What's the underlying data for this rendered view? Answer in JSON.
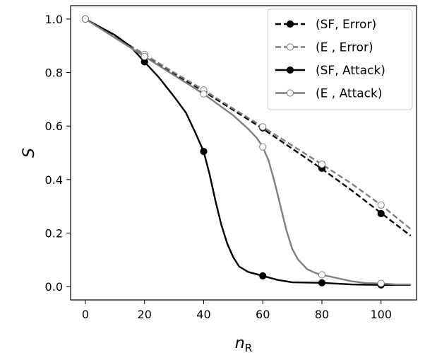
{
  "chart_data": {
    "type": "line",
    "title": "",
    "xlabel_main": "n",
    "xlabel_sub": "R",
    "ylabel": "S",
    "xlim": [
      -5,
      112
    ],
    "ylim": [
      -0.05,
      1.05
    ],
    "xticks": [
      0,
      20,
      40,
      60,
      80,
      100
    ],
    "yticks": [
      0.0,
      0.2,
      0.4,
      0.6,
      0.8,
      1.0
    ],
    "ytick_labels": [
      "0.0",
      "0.2",
      "0.4",
      "0.6",
      "0.8",
      "1.0"
    ],
    "grid": false,
    "legend_position": "top-right",
    "series": [
      {
        "name": "(SF, Error)",
        "color": "#000000",
        "dash": true,
        "marker_fill": "#000000",
        "curve": [
          [
            0,
            1.0
          ],
          [
            10,
            0.935
          ],
          [
            20,
            0.865
          ],
          [
            30,
            0.795
          ],
          [
            40,
            0.73
          ],
          [
            50,
            0.66
          ],
          [
            60,
            0.59
          ],
          [
            70,
            0.515
          ],
          [
            80,
            0.44
          ],
          [
            90,
            0.36
          ],
          [
            100,
            0.275
          ],
          [
            110,
            0.19
          ]
        ],
        "markers": [
          [
            0,
            1.0
          ],
          [
            20,
            0.862
          ],
          [
            40,
            0.728
          ],
          [
            60,
            0.593
          ],
          [
            80,
            0.442
          ],
          [
            100,
            0.273
          ]
        ]
      },
      {
        "name": "(E , Error)",
        "color": "#7f7f7f",
        "dash": true,
        "marker_fill": "#ffffff",
        "curve": [
          [
            0,
            1.0
          ],
          [
            10,
            0.935
          ],
          [
            20,
            0.868
          ],
          [
            30,
            0.8
          ],
          [
            40,
            0.735
          ],
          [
            50,
            0.665
          ],
          [
            60,
            0.597
          ],
          [
            70,
            0.527
          ],
          [
            80,
            0.457
          ],
          [
            90,
            0.385
          ],
          [
            100,
            0.305
          ],
          [
            110,
            0.215
          ]
        ],
        "markers": [
          [
            0,
            1.0
          ],
          [
            20,
            0.868
          ],
          [
            40,
            0.735
          ],
          [
            60,
            0.597
          ],
          [
            80,
            0.457
          ],
          [
            100,
            0.305
          ]
        ]
      },
      {
        "name": "(SF, Attack)",
        "color": "#000000",
        "dash": false,
        "marker_fill": "#000000",
        "curve": [
          [
            0,
            1.0
          ],
          [
            5,
            0.97
          ],
          [
            10,
            0.94
          ],
          [
            15,
            0.9
          ],
          [
            20,
            0.84
          ],
          [
            25,
            0.78
          ],
          [
            30,
            0.71
          ],
          [
            34,
            0.65
          ],
          [
            37,
            0.58
          ],
          [
            40,
            0.505
          ],
          [
            42,
            0.42
          ],
          [
            44,
            0.32
          ],
          [
            46,
            0.23
          ],
          [
            48,
            0.16
          ],
          [
            50,
            0.11
          ],
          [
            52,
            0.075
          ],
          [
            55,
            0.055
          ],
          [
            60,
            0.04
          ],
          [
            65,
            0.025
          ],
          [
            70,
            0.016
          ],
          [
            80,
            0.014
          ],
          [
            90,
            0.008
          ],
          [
            100,
            0.006
          ],
          [
            110,
            0.006
          ]
        ],
        "markers": [
          [
            0,
            1.0
          ],
          [
            20,
            0.84
          ],
          [
            40,
            0.505
          ],
          [
            60,
            0.04
          ],
          [
            80,
            0.014
          ],
          [
            100,
            0.006
          ]
        ]
      },
      {
        "name": "(E , Attack)",
        "color": "#7f7f7f",
        "dash": false,
        "marker_fill": "#ffffff",
        "curve": [
          [
            0,
            1.0
          ],
          [
            10,
            0.93
          ],
          [
            20,
            0.86
          ],
          [
            30,
            0.79
          ],
          [
            40,
            0.72
          ],
          [
            45,
            0.68
          ],
          [
            50,
            0.64
          ],
          [
            55,
            0.59
          ],
          [
            58,
            0.555
          ],
          [
            60,
            0.522
          ],
          [
            62,
            0.47
          ],
          [
            64,
            0.39
          ],
          [
            66,
            0.3
          ],
          [
            68,
            0.21
          ],
          [
            70,
            0.14
          ],
          [
            72,
            0.1
          ],
          [
            75,
            0.065
          ],
          [
            78,
            0.05
          ],
          [
            80,
            0.044
          ],
          [
            85,
            0.032
          ],
          [
            90,
            0.02
          ],
          [
            95,
            0.013
          ],
          [
            100,
            0.012
          ],
          [
            105,
            0.008
          ],
          [
            110,
            0.008
          ]
        ],
        "markers": [
          [
            0,
            1.0
          ],
          [
            20,
            0.86
          ],
          [
            40,
            0.72
          ],
          [
            60,
            0.522
          ],
          [
            80,
            0.044
          ],
          [
            100,
            0.012
          ]
        ]
      }
    ]
  }
}
